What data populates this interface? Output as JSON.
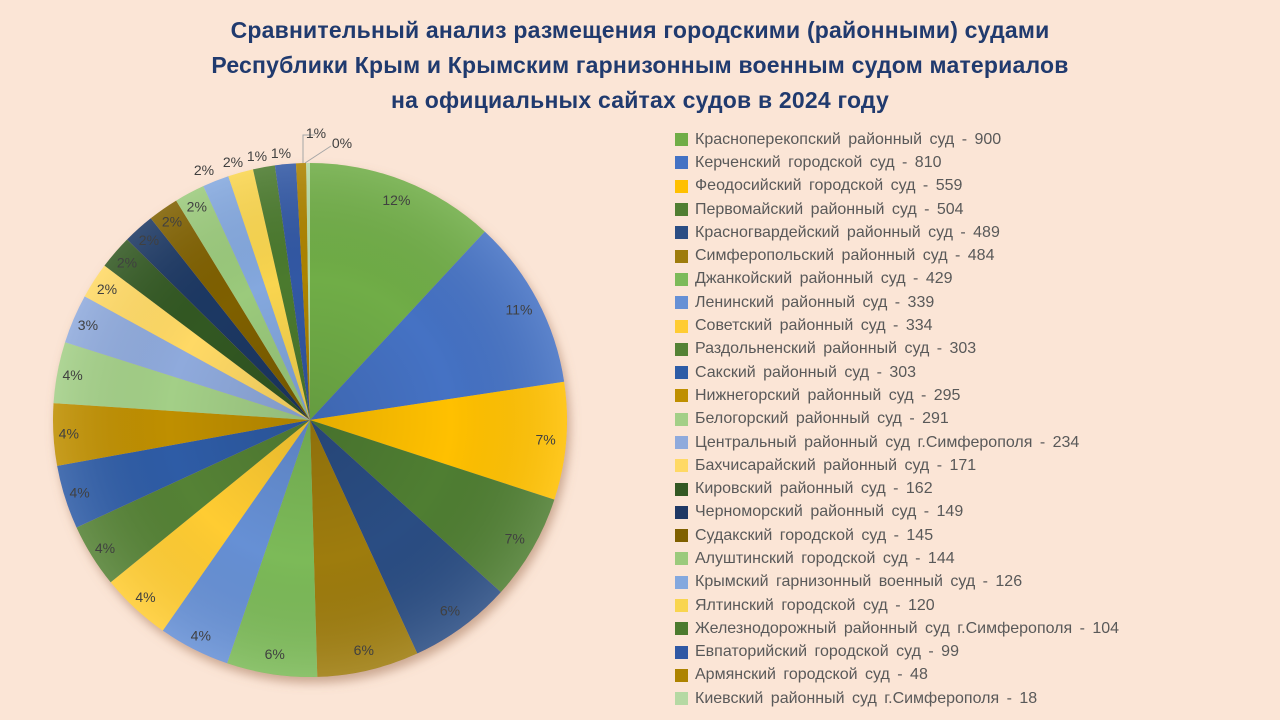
{
  "background_color": "#FBE5D6",
  "title": {
    "lines": [
      "Сравнительный анализ размещения городскими (районными) судами",
      "Республики Крым и Крымским гарнизонным военным судом материалов",
      "на официальных сайтах судов в 2024 году"
    ],
    "color": "#203A6E"
  },
  "chart_data": {
    "type": "pie",
    "title": "Сравнительный анализ размещения городскими (районными) судами Республики Крым и Крымским гарнизонным военным судом материалов на официальных сайтах судов в 2024 году",
    "total": 7560,
    "start_angle": "top",
    "direction": "clockwise",
    "labels": "percent",
    "legend_position": "right",
    "legend_format": "name - value",
    "percent_label_color": "#404040",
    "legend_text_color": "#595959",
    "leader_line_color": "#A6A6A6",
    "slices": [
      {
        "label": "Красноперекопский районный суд",
        "value": 900,
        "pct": "12%",
        "color": "#70AD47"
      },
      {
        "label": "Керченский городской суд",
        "value": 810,
        "pct": "11%",
        "color": "#4472C4"
      },
      {
        "label": "Феодосийский городской суд",
        "value": 559,
        "pct": "7%",
        "color": "#FFC000"
      },
      {
        "label": "Первомайский районный суд",
        "value": 504,
        "pct": "7%",
        "color": "#507E32"
      },
      {
        "label": "Красногвардейский районный суд",
        "value": 489,
        "pct": "6%",
        "color": "#2B4D83"
      },
      {
        "label": "Симферопольский районный суд",
        "value": 484,
        "pct": "6%",
        "color": "#9E7C0C"
      },
      {
        "label": "Джанкойский районный суд",
        "value": 429,
        "pct": "6%",
        "color": "#7CBA59"
      },
      {
        "label": "Ленинский районный суд",
        "value": 339,
        "pct": "4%",
        "color": "#6690D5"
      },
      {
        "label": "Советский районный суд",
        "value": 334,
        "pct": "4%",
        "color": "#FFCC33"
      },
      {
        "label": "Раздольненский районный суд",
        "value": 303,
        "pct": "4%",
        "color": "#548235"
      },
      {
        "label": "Сакский районный суд",
        "value": 303,
        "pct": "4%",
        "color": "#2E5CA6"
      },
      {
        "label": "Нижнегорский районный суд",
        "value": 295,
        "pct": "4%",
        "color": "#BF8F00"
      },
      {
        "label": "Белогорский районный суд",
        "value": 291,
        "pct": "4%",
        "color": "#A3CF87"
      },
      {
        "label": "Центральный районный суд г.Симферополя",
        "value": 234,
        "pct": "3%",
        "color": "#8FAADC"
      },
      {
        "label": "Бахчисарайский районный суд",
        "value": 171,
        "pct": "2%",
        "color": "#FFD965"
      },
      {
        "label": "Кировский районный суд",
        "value": 162,
        "pct": "2%",
        "color": "#335823"
      },
      {
        "label": "Черноморский районный суд",
        "value": 149,
        "pct": "2%",
        "color": "#1F3864"
      },
      {
        "label": "Судакский городской суд",
        "value": 145,
        "pct": "2%",
        "color": "#7F6000"
      },
      {
        "label": "Алуштинский городской суд",
        "value": 144,
        "pct": "2%",
        "color": "#9BCA7C"
      },
      {
        "label": "Крымский гарнизонный военный суд",
        "value": 126,
        "pct": "2%",
        "color": "#84A8DE"
      },
      {
        "label": "Ялтинский городской суд",
        "value": 120,
        "pct": "2%",
        "color": "#F9D54F"
      },
      {
        "label": "Железнодорожный районный суд г.Симферополя",
        "value": 104,
        "pct": "1%",
        "color": "#4B7A2E"
      },
      {
        "label": "Евпаторийский городской суд",
        "value": 99,
        "pct": "1%",
        "color": "#3058A4"
      },
      {
        "label": "Армянский городской суд",
        "value": 48,
        "pct": "1%",
        "color": "#AD8300"
      },
      {
        "label": "Киевский районный суд г.Симферополя",
        "value": 18,
        "pct": "0%",
        "color": "#B5D9A3"
      }
    ]
  }
}
